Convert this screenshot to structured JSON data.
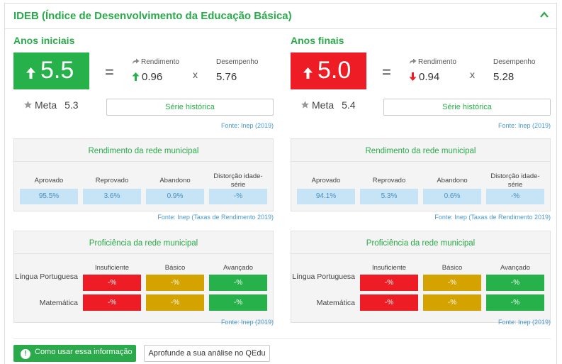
{
  "header": {
    "title": "IDEB (Índice de Desenvolvimento da Educação Básica)"
  },
  "colors": {
    "accent": "#2aaa4a",
    "score_up": "#26b14a",
    "score_down": "#ee1d25",
    "insuficiente": "#ee1d25",
    "basico": "#d4a300",
    "avancado": "#26b14a",
    "rate_cell": "#c6e4f5"
  },
  "labels": {
    "rendimento": "Rendimento",
    "desempenho": "Desempenho",
    "equals": "=",
    "times": "x",
    "meta": "Meta",
    "serie": "Série histórica",
    "fonte_ideb": "Fonte: Inep (2019)",
    "rend_title": "Rendimento da rede municipal",
    "rend_headers": [
      "Aprovado",
      "Reprovado",
      "Abandono",
      "Distorção idade-série"
    ],
    "fonte_rend": "Fonte: Inep (Taxas de Rendimento 2019)",
    "prof_title": "Proficiência da rede municipal",
    "prof_headers": [
      "Insuficiente",
      "Básico",
      "Avançado"
    ],
    "prof_rows": [
      "Língua Portuguesa",
      "Matemática"
    ],
    "fonte_prof": "Fonte: Inep (2019)"
  },
  "iniciais": {
    "title": "Anos iniciais",
    "ideb": "5.5",
    "ideb_trend": "up",
    "rendimento": "0.96",
    "rendimento_trend": "up",
    "desempenho": "5.76",
    "meta": "5.3",
    "rates": [
      "95.5%",
      "3.6%",
      "0.9%",
      "-%"
    ],
    "prof": [
      [
        "-%",
        "-%",
        "-%"
      ],
      [
        "-%",
        "-%",
        "-%"
      ]
    ]
  },
  "finais": {
    "title": "Anos finais",
    "ideb": "5.0",
    "ideb_trend": "up",
    "rendimento": "0.94",
    "rendimento_trend": "down",
    "desempenho": "5.28",
    "meta": "5.4",
    "rates": [
      "94.1%",
      "5.3%",
      "0.6%",
      "-%"
    ],
    "prof": [
      [
        "-%",
        "-%",
        "-%"
      ],
      [
        "-%",
        "-%",
        "-%"
      ]
    ]
  },
  "footer": {
    "help_button": "Como usar essa informação",
    "deep_button": "Aprofunde a sua análise no QEdu"
  }
}
